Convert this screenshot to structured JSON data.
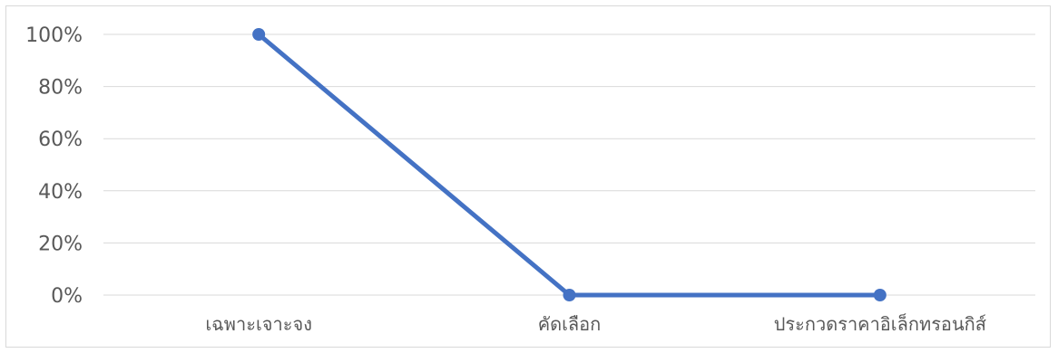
{
  "chart_data": {
    "type": "line",
    "categories": [
      "เฉพาะเจาะจง",
      "คัดเลือก",
      "ประกวดราคาอิเล็กทรอนกิส์"
    ],
    "series": [
      {
        "values": [
          100,
          0,
          0
        ]
      }
    ],
    "ylim": [
      0,
      100
    ],
    "yticks": [
      0,
      20,
      40,
      60,
      80,
      100
    ],
    "ytick_labels": [
      "0%",
      "20%",
      "40%",
      "60%",
      "80%",
      "100%"
    ],
    "grid": true,
    "legend": "none",
    "colors": {
      "series": "#4472c4",
      "grid": "#d9d9d9",
      "text": "#595959"
    }
  }
}
